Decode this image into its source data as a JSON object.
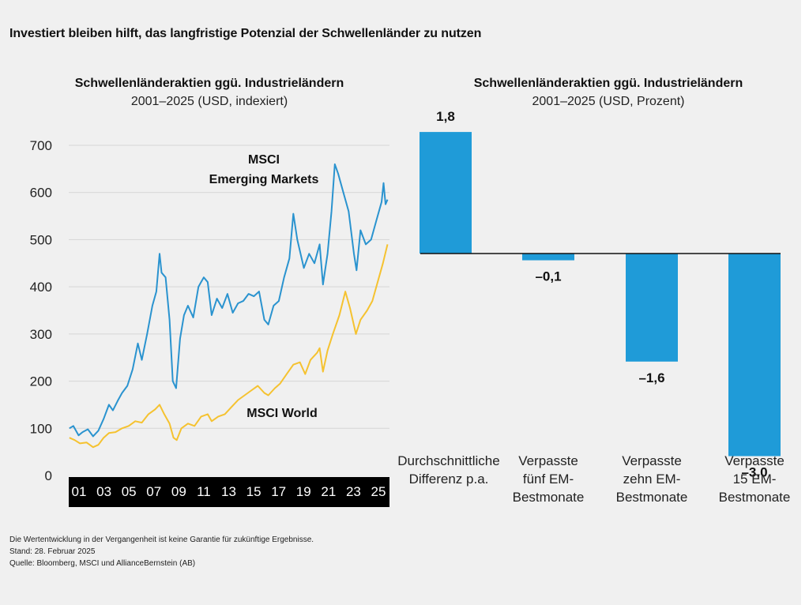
{
  "title": "Investiert bleiben hilft, das langfristige Potenzial der Schwellenländer zu nutzen",
  "left": {
    "title": "Schwellenländeraktien ggü. Industrieländern",
    "subtitle": "2001–2025 (USD, indexiert)"
  },
  "right": {
    "title": "Schwellenländeraktien ggü. Industrieländern",
    "subtitle": "2001–2025 (USD, Prozent)"
  },
  "footnotes": [
    "Die Wertentwicklung in der Vergangenheit ist keine Garantie für zukünftige Ergebnisse.",
    "Stand: 28. Februar 2025",
    "Quelle: Bloomberg, MSCI und AllianceBernstein (AB)"
  ],
  "colors": {
    "em": "#2a93cf",
    "world": "#f5c230",
    "bar": "#1f9bd8",
    "axis_band": "#000000",
    "grid": "#d6d6d6"
  },
  "chart_data": [
    {
      "type": "line",
      "title": "Schwellenländeraktien ggü. Industrieländern",
      "subtitle": "2001–2025 (USD, indexiert)",
      "x_tick_labels": [
        "01",
        "03",
        "05",
        "07",
        "09",
        "11",
        "13",
        "15",
        "17",
        "19",
        "21",
        "23",
        "25"
      ],
      "ylim": [
        0,
        700
      ],
      "y_ticks": [
        0,
        100,
        200,
        300,
        400,
        500,
        600,
        700
      ],
      "grid": true,
      "series": [
        {
          "name": "MSCI Emerging Markets",
          "label_lines": [
            "MSCI",
            "Emerging Markets"
          ],
          "color": "#2a93cf",
          "points": [
            [
              2001.0,
              100
            ],
            [
              2001.3,
              105
            ],
            [
              2001.7,
              85
            ],
            [
              2002.0,
              92
            ],
            [
              2002.4,
              98
            ],
            [
              2002.8,
              83
            ],
            [
              2003.2,
              95
            ],
            [
              2003.6,
              120
            ],
            [
              2004.0,
              150
            ],
            [
              2004.3,
              138
            ],
            [
              2004.7,
              160
            ],
            [
              2005.0,
              175
            ],
            [
              2005.4,
              190
            ],
            [
              2005.8,
              225
            ],
            [
              2006.2,
              280
            ],
            [
              2006.5,
              245
            ],
            [
              2006.9,
              300
            ],
            [
              2007.3,
              360
            ],
            [
              2007.6,
              390
            ],
            [
              2007.85,
              470
            ],
            [
              2008.0,
              430
            ],
            [
              2008.3,
              420
            ],
            [
              2008.6,
              330
            ],
            [
              2008.85,
              200
            ],
            [
              2009.1,
              185
            ],
            [
              2009.4,
              290
            ],
            [
              2009.7,
              340
            ],
            [
              2010.0,
              360
            ],
            [
              2010.4,
              335
            ],
            [
              2010.8,
              400
            ],
            [
              2011.2,
              420
            ],
            [
              2011.5,
              410
            ],
            [
              2011.8,
              340
            ],
            [
              2012.2,
              375
            ],
            [
              2012.6,
              355
            ],
            [
              2013.0,
              385
            ],
            [
              2013.4,
              345
            ],
            [
              2013.8,
              365
            ],
            [
              2014.2,
              370
            ],
            [
              2014.6,
              385
            ],
            [
              2015.0,
              380
            ],
            [
              2015.4,
              390
            ],
            [
              2015.8,
              330
            ],
            [
              2016.1,
              320
            ],
            [
              2016.5,
              360
            ],
            [
              2016.9,
              370
            ],
            [
              2017.3,
              420
            ],
            [
              2017.7,
              460
            ],
            [
              2018.0,
              555
            ],
            [
              2018.3,
              500
            ],
            [
              2018.8,
              440
            ],
            [
              2019.2,
              470
            ],
            [
              2019.6,
              450
            ],
            [
              2020.0,
              490
            ],
            [
              2020.25,
              405
            ],
            [
              2020.6,
              470
            ],
            [
              2020.9,
              560
            ],
            [
              2021.15,
              660
            ],
            [
              2021.4,
              640
            ],
            [
              2021.8,
              600
            ],
            [
              2022.2,
              560
            ],
            [
              2022.6,
              470
            ],
            [
              2022.8,
              435
            ],
            [
              2023.1,
              520
            ],
            [
              2023.5,
              490
            ],
            [
              2023.9,
              500
            ],
            [
              2024.3,
              540
            ],
            [
              2024.7,
              580
            ],
            [
              2024.85,
              620
            ],
            [
              2025.0,
              575
            ],
            [
              2025.15,
              585
            ]
          ]
        },
        {
          "name": "MSCI World",
          "color": "#f5c230",
          "points": [
            [
              2001.0,
              80
            ],
            [
              2001.4,
              75
            ],
            [
              2001.8,
              68
            ],
            [
              2002.3,
              70
            ],
            [
              2002.8,
              60
            ],
            [
              2003.2,
              65
            ],
            [
              2003.6,
              80
            ],
            [
              2004.0,
              90
            ],
            [
              2004.5,
              92
            ],
            [
              2005.0,
              100
            ],
            [
              2005.5,
              105
            ],
            [
              2006.0,
              115
            ],
            [
              2006.5,
              112
            ],
            [
              2007.0,
              130
            ],
            [
              2007.5,
              140
            ],
            [
              2007.85,
              150
            ],
            [
              2008.2,
              130
            ],
            [
              2008.6,
              110
            ],
            [
              2008.9,
              80
            ],
            [
              2009.15,
              75
            ],
            [
              2009.5,
              100
            ],
            [
              2010.0,
              110
            ],
            [
              2010.5,
              105
            ],
            [
              2011.0,
              125
            ],
            [
              2011.5,
              130
            ],
            [
              2011.8,
              115
            ],
            [
              2012.3,
              125
            ],
            [
              2012.8,
              130
            ],
            [
              2013.3,
              145
            ],
            [
              2013.8,
              160
            ],
            [
              2014.3,
              170
            ],
            [
              2014.8,
              180
            ],
            [
              2015.3,
              190
            ],
            [
              2015.8,
              175
            ],
            [
              2016.1,
              170
            ],
            [
              2016.6,
              185
            ],
            [
              2017.0,
              195
            ],
            [
              2017.5,
              215
            ],
            [
              2018.0,
              235
            ],
            [
              2018.5,
              240
            ],
            [
              2018.9,
              215
            ],
            [
              2019.3,
              245
            ],
            [
              2019.8,
              260
            ],
            [
              2020.0,
              270
            ],
            [
              2020.25,
              220
            ],
            [
              2020.6,
              265
            ],
            [
              2021.0,
              300
            ],
            [
              2021.5,
              340
            ],
            [
              2021.95,
              390
            ],
            [
              2022.3,
              355
            ],
            [
              2022.75,
              300
            ],
            [
              2023.1,
              330
            ],
            [
              2023.6,
              350
            ],
            [
              2024.0,
              370
            ],
            [
              2024.4,
              410
            ],
            [
              2024.8,
              450
            ],
            [
              2025.15,
              490
            ]
          ]
        }
      ]
    },
    {
      "type": "bar",
      "title": "Schwellenländeraktien ggü. Industrieländern",
      "subtitle": "2001–2025 (USD, Prozent)",
      "categories": [
        "Durchschnittliche Differenz p.a.",
        "Verpasste fünf EM-Bestmonate",
        "Verpasste zehn EM-Bestmonate",
        "Verpasste 15 EM-Bestmonate"
      ],
      "category_lines": [
        [
          "Durchschnittliche",
          "Differenz p.a."
        ],
        [
          "Verpasste",
          "fünf EM-",
          "Bestmonate"
        ],
        [
          "Verpasste",
          "zehn EM-",
          "Bestmonate"
        ],
        [
          "Verpasste",
          "15 EM-",
          "Bestmonate"
        ]
      ],
      "values": [
        1.8,
        -0.1,
        -1.6,
        -3.0
      ],
      "value_labels": [
        "1,8",
        "–0,1",
        "–1,6",
        "–3,0"
      ]
    }
  ]
}
